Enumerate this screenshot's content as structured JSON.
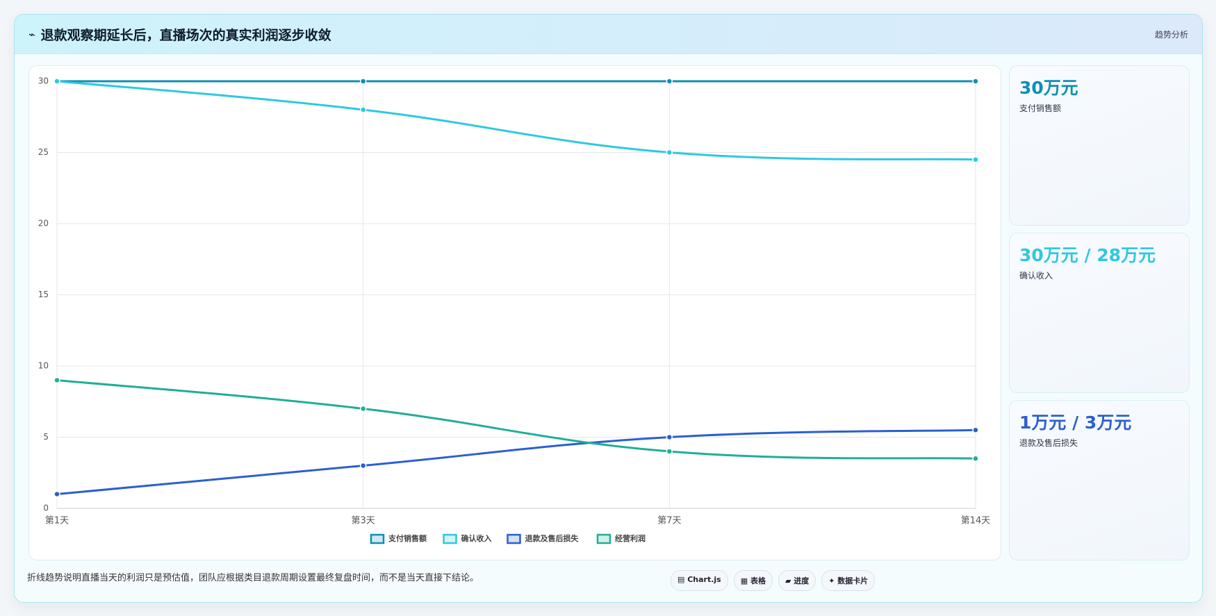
{
  "header": {
    "icon": "⌁",
    "title": "退款观察期延长后，直播场次的真实利润逐步收敛",
    "tag": "趋势分析"
  },
  "chart_data": {
    "type": "line",
    "categories": [
      "第1天",
      "第3天",
      "第7天",
      "第14天"
    ],
    "series": [
      {
        "name": "支付销售额",
        "color": "#0e8fb3",
        "values": [
          30,
          30,
          30,
          30
        ]
      },
      {
        "name": "确认收入",
        "color": "#2ec8e0",
        "values": [
          30,
          28,
          25,
          24.5
        ]
      },
      {
        "name": "退款及售后损失",
        "color": "#2b5fd0",
        "values": [
          1,
          3,
          5,
          5.5
        ]
      },
      {
        "name": "经营利润",
        "color": "#1fae98",
        "values": [
          9,
          7,
          4,
          3.5
        ]
      }
    ],
    "ylim": [
      0,
      30
    ],
    "yticks": [
      0,
      5,
      10,
      15,
      20,
      25,
      30
    ],
    "grid": true,
    "legend": "bottom"
  },
  "cards": [
    {
      "value": "30万元",
      "label": "支付销售额",
      "color": "#0e8fb3"
    },
    {
      "value": "30万元 / 28万元",
      "label": "确认收入",
      "color": "#2ec8e0"
    },
    {
      "value": "1万元 / 3万元",
      "label": "退款及售后损失",
      "color": "#2b5fd0"
    }
  ],
  "footer": {
    "note": "折线趋势说明直播当天的利润只是预估值，团队应根据类目退款周期设置最终复盘时间，而不是当天直接下结论。",
    "badges": [
      "▤ Chart.js",
      "▦ 表格",
      "▰ 进度",
      "✦ 数据卡片"
    ]
  }
}
